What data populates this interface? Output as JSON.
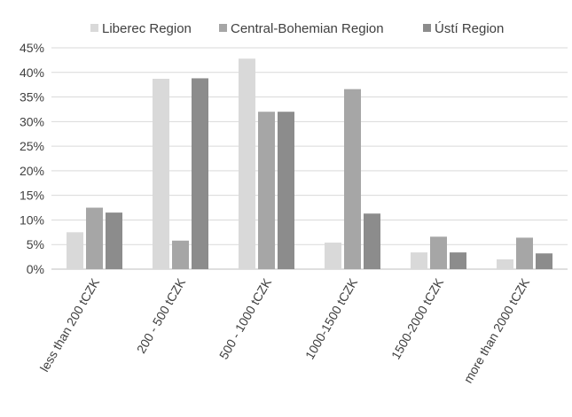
{
  "chart_data": {
    "type": "bar",
    "categories": [
      "less than 200 tCZK",
      "200 - 500 tCZK",
      "500 - 1000 tCZK",
      "1000-1500 tCZK",
      "1500-2000 tCZK",
      "more than 2000 tCZK"
    ],
    "series": [
      {
        "name": "Liberec Region",
        "color": "#d9d9d9",
        "values": [
          7.5,
          38.7,
          42.8,
          5.4,
          3.4,
          2.0
        ]
      },
      {
        "name": "Central-Bohemian Region",
        "color": "#a6a6a6",
        "values": [
          12.5,
          5.8,
          32.0,
          36.6,
          6.6,
          6.4
        ]
      },
      {
        "name": "Ústí Region",
        "color": "#8c8c8c",
        "values": [
          11.5,
          38.8,
          32.0,
          11.3,
          3.4,
          3.2
        ]
      }
    ],
    "yticks": [
      "0%",
      "5%",
      "10%",
      "15%",
      "20%",
      "25%",
      "30%",
      "35%",
      "40%",
      "45%"
    ],
    "ylim": [
      0,
      45
    ],
    "grid": true,
    "legend_position": "top"
  }
}
